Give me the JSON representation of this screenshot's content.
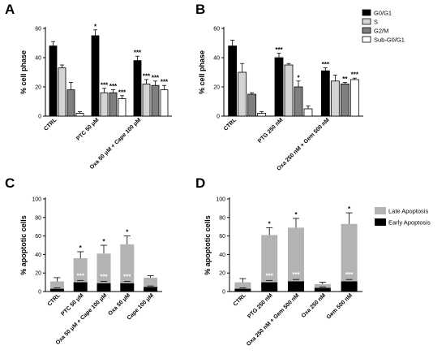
{
  "chart_data": [
    {
      "panel": "A",
      "type": "bar",
      "ylabel": "% cell phase",
      "ylim": [
        0,
        60
      ],
      "yticks": [
        0,
        20,
        40,
        60
      ],
      "categories": [
        "CTRL",
        "PTC 50 μM",
        "Oxa 50 μM + Cape 100 μM"
      ],
      "series": [
        {
          "name": "G0/G1",
          "color": "#000000",
          "values": [
            48,
            55,
            38
          ],
          "errors": [
            3,
            4,
            3
          ],
          "stars": [
            "",
            "*",
            "***"
          ]
        },
        {
          "name": "S",
          "color": "#d4d4d4",
          "values": [
            33,
            16,
            22
          ],
          "errors": [
            2,
            3,
            3
          ],
          "stars": [
            "",
            "***",
            "***"
          ]
        },
        {
          "name": "G2/M",
          "color": "#7f7f7f",
          "values": [
            18,
            16,
            21
          ],
          "errors": [
            5,
            2,
            3
          ],
          "stars": [
            "",
            "***",
            "***"
          ]
        },
        {
          "name": "Sub-G0/G1",
          "color": "#ffffff",
          "values": [
            2,
            12,
            18
          ],
          "errors": [
            1,
            2,
            3
          ],
          "stars": [
            "",
            "***",
            "***"
          ]
        }
      ]
    },
    {
      "panel": "B",
      "type": "bar",
      "ylabel": "% cell phase",
      "ylim": [
        0,
        60
      ],
      "yticks": [
        0,
        20,
        40,
        60
      ],
      "categories": [
        "CTRL",
        "PTG 250 nM",
        "Oxa 250 nM + Gem 500 nM"
      ],
      "series": [
        {
          "name": "G0/G1",
          "color": "#000000",
          "values": [
            48,
            40,
            31
          ],
          "errors": [
            4,
            3,
            2
          ],
          "stars": [
            "",
            "***",
            "***"
          ]
        },
        {
          "name": "S",
          "color": "#d4d4d4",
          "values": [
            30,
            35,
            24
          ],
          "errors": [
            6,
            1,
            4
          ],
          "stars": [
            "",
            "",
            ""
          ]
        },
        {
          "name": "G2/M",
          "color": "#7f7f7f",
          "values": [
            15,
            20,
            22
          ],
          "errors": [
            1,
            4,
            1
          ],
          "stars": [
            "",
            "*",
            "**"
          ]
        },
        {
          "name": "Sub-G0/G1",
          "color": "#ffffff",
          "values": [
            2,
            5,
            25
          ],
          "errors": [
            1,
            2,
            1
          ],
          "stars": [
            "",
            "",
            "***"
          ]
        }
      ]
    },
    {
      "panel": "C",
      "type": "bar",
      "stacked": true,
      "ylabel": "% apoptotic cells",
      "ylim": [
        0,
        100
      ],
      "yticks": [
        0,
        20,
        40,
        60,
        80,
        100
      ],
      "categories": [
        "CTRL",
        "PTC 50 μM",
        "Oxa 50 μM + Cape 100 μM",
        "Oxa 50 μM",
        "Cape 100 μM"
      ],
      "series": [
        {
          "name": "Early Apoptosis",
          "color": "#000000",
          "values": [
            3,
            10,
            9,
            9,
            5
          ],
          "errors": [
            1,
            2,
            2,
            2,
            1
          ],
          "stars": [
            "",
            "***",
            "***",
            "***",
            ""
          ]
        },
        {
          "name": "Late Apoptosis",
          "color": "#b3b3b3",
          "values": [
            8,
            26,
            32,
            42,
            10
          ],
          "errors": [
            4,
            7,
            9,
            9,
            2
          ],
          "stars": [
            "",
            "*",
            "*",
            "*",
            ""
          ]
        }
      ]
    },
    {
      "panel": "D",
      "type": "bar",
      "stacked": true,
      "ylabel": "% apoptotic cells",
      "ylim": [
        0,
        100
      ],
      "yticks": [
        0,
        20,
        40,
        60,
        80,
        100
      ],
      "categories": [
        "CTRL",
        "PTG 250 nM",
        "Oxa 250 nM + Gem 500 nM",
        "Oxa 250 nM",
        "Gem 500 nM"
      ],
      "legend": [
        "Late Apoptosis",
        "Early Apoptosis"
      ],
      "series": [
        {
          "name": "Early Apoptosis",
          "color": "#000000",
          "values": [
            3,
            10,
            11,
            4,
            11
          ],
          "errors": [
            1,
            2,
            2,
            1,
            2
          ],
          "stars": [
            "",
            "***",
            "***",
            "",
            "***"
          ]
        },
        {
          "name": "Late Apoptosis",
          "color": "#b3b3b3",
          "values": [
            7,
            51,
            58,
            4,
            62
          ],
          "errors": [
            4,
            8,
            10,
            2,
            12
          ],
          "stars": [
            "",
            "*",
            "*",
            "",
            "*"
          ]
        }
      ]
    }
  ]
}
